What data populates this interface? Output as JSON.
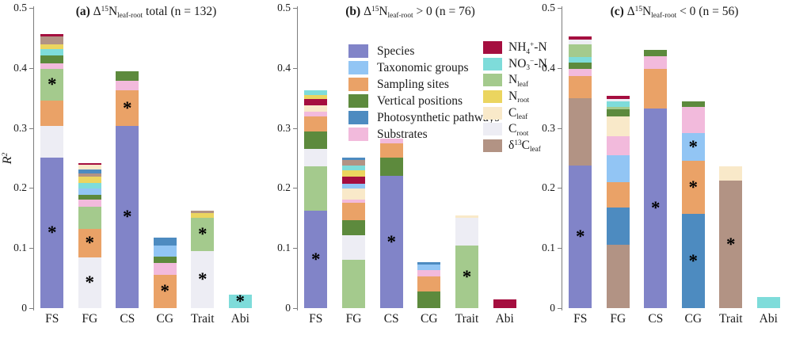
{
  "sig_note": "asterisks mark significant fractions",
  "legend": {
    "factors": [
      {
        "key": "species",
        "color": "#8184C8",
        "label_parts": [
          {
            "t": "Species"
          }
        ]
      },
      {
        "key": "taxonomic",
        "color": "#92C5F4",
        "label_parts": [
          {
            "t": "Taxonomic groups"
          }
        ]
      },
      {
        "key": "sampling",
        "color": "#EAA267",
        "label_parts": [
          {
            "t": "Sampling sites"
          }
        ]
      },
      {
        "key": "vertical",
        "color": "#5D8A3D",
        "label_parts": [
          {
            "t": "Vertical positions"
          }
        ]
      },
      {
        "key": "photosynthetic",
        "color": "#4D8BC0",
        "label_parts": [
          {
            "t": "Photosynthetic pathways"
          }
        ]
      },
      {
        "key": "substrates",
        "color": "#F2BADC",
        "label_parts": [
          {
            "t": "Substrates"
          }
        ]
      }
    ],
    "covariates": [
      {
        "key": "nh4",
        "color": "#A50E3F",
        "label_parts": [
          {
            "t": "NH"
          },
          {
            "sub": "4"
          },
          {
            "sup": "+"
          },
          {
            "t": "-N"
          }
        ]
      },
      {
        "key": "no3",
        "color": "#7EDCDA",
        "label_parts": [
          {
            "t": "NO"
          },
          {
            "sub": "3"
          },
          {
            "sup": "−"
          },
          {
            "t": "-N"
          }
        ]
      },
      {
        "key": "nleaf",
        "color": "#A4CA8D",
        "label_parts": [
          {
            "t": "N"
          },
          {
            "sub": "leaf"
          }
        ]
      },
      {
        "key": "nroot",
        "color": "#EBD55F",
        "label_parts": [
          {
            "t": "N"
          },
          {
            "sub": "root"
          }
        ]
      },
      {
        "key": "cleaf",
        "color": "#F9E9C9",
        "label_parts": [
          {
            "t": "C"
          },
          {
            "sub": "leaf"
          }
        ]
      },
      {
        "key": "croot",
        "color": "#EDEDF4",
        "label_parts": [
          {
            "t": "C"
          },
          {
            "sub": "root"
          }
        ]
      },
      {
        "key": "d13c",
        "color": "#B29384",
        "label_parts": [
          {
            "t": "δ"
          },
          {
            "sup": "13"
          },
          {
            "t": "C"
          },
          {
            "sub": "leaf"
          }
        ]
      }
    ]
  },
  "chart_data": {
    "type": "bar",
    "subtype": "stacked-bar",
    "sig_marker": "*",
    "panels": [
      {
        "id": "a",
        "title_parts": [
          {
            "b": "(a) "
          },
          {
            "t": "Δ"
          },
          {
            "sup": "15"
          },
          {
            "t": "N"
          },
          {
            "sub": "leaf-root"
          },
          {
            "t": " total (n = 132)"
          }
        ],
        "ylabel_parts": [
          {
            "i": "R"
          },
          {
            "sup": "2"
          }
        ],
        "ylim": [
          0,
          0.5
        ],
        "yticks": [
          0,
          0.1,
          0.2,
          0.3,
          0.4,
          0.5
        ],
        "ytick_labels": [
          "0",
          "0.1",
          "0.2",
          "0.3",
          "0.4",
          "0.5"
        ],
        "categories": [
          "FS",
          "FG",
          "CS",
          "CG",
          "Trait",
          "Abi"
        ],
        "bars": [
          {
            "category": "FS",
            "segments": [
              {
                "key": "species",
                "value": 0.251,
                "sig": true
              },
              {
                "key": "croot",
                "value": 0.053
              },
              {
                "key": "sampling",
                "value": 0.042
              },
              {
                "key": "nleaf",
                "value": 0.053,
                "sig": true
              },
              {
                "key": "substrates",
                "value": 0.008
              },
              {
                "key": "vertical",
                "value": 0.014
              },
              {
                "key": "no3",
                "value": 0.011
              },
              {
                "key": "nroot",
                "value": 0.007
              },
              {
                "key": "d13c",
                "value": 0.013
              },
              {
                "key": "nh4",
                "value": 0.005
              }
            ]
          },
          {
            "category": "FG",
            "segments": [
              {
                "key": "croot",
                "value": 0.085,
                "sig": true
              },
              {
                "key": "sampling",
                "value": 0.047,
                "sig": true
              },
              {
                "key": "nleaf",
                "value": 0.037
              },
              {
                "key": "substrates",
                "value": 0.012
              },
              {
                "key": "vertical",
                "value": 0.008
              },
              {
                "key": "taxonomic",
                "value": 0.01
              },
              {
                "key": "no3",
                "value": 0.009
              },
              {
                "key": "nroot",
                "value": 0.011
              },
              {
                "key": "d13c",
                "value": 0.005
              },
              {
                "key": "photosynthetic",
                "value": 0.007
              },
              {
                "key": "cleaf",
                "value": 0.008
              },
              {
                "key": "nh4",
                "value": 0.002
              }
            ]
          },
          {
            "category": "CS",
            "segments": [
              {
                "key": "species",
                "value": 0.303,
                "sig": true
              },
              {
                "key": "sampling",
                "value": 0.06,
                "sig": true
              },
              {
                "key": "substrates",
                "value": 0.016
              },
              {
                "key": "vertical",
                "value": 0.015
              }
            ]
          },
          {
            "category": "CG",
            "segments": [
              {
                "key": "sampling",
                "value": 0.056,
                "sig": true
              },
              {
                "key": "substrates",
                "value": 0.019
              },
              {
                "key": "vertical",
                "value": 0.011
              },
              {
                "key": "taxonomic",
                "value": 0.019
              },
              {
                "key": "photosynthetic",
                "value": 0.013
              }
            ]
          },
          {
            "category": "Trait",
            "segments": [
              {
                "key": "croot",
                "value": 0.095,
                "sig": true
              },
              {
                "key": "nleaf",
                "value": 0.056,
                "sig": true
              },
              {
                "key": "nroot",
                "value": 0.008
              },
              {
                "key": "d13c",
                "value": 0.004
              }
            ]
          },
          {
            "category": "Abi",
            "segments": [
              {
                "key": "no3",
                "value": 0.022,
                "sig": true
              }
            ]
          }
        ]
      },
      {
        "id": "b",
        "title_parts": [
          {
            "b": "(b) "
          },
          {
            "t": "Δ"
          },
          {
            "sup": "15"
          },
          {
            "t": "N"
          },
          {
            "sub": "leaf-root"
          },
          {
            "t": " > 0 (n = 76)"
          }
        ],
        "ylim": [
          0,
          0.5
        ],
        "yticks": [
          0,
          0.1,
          0.2,
          0.3,
          0.4,
          0.5
        ],
        "ytick_labels": [
          "0",
          "0.1",
          "0.2",
          "0.3",
          "0.4",
          "0.5"
        ],
        "categories": [
          "FS",
          "FG",
          "CS",
          "CG",
          "Trait",
          "Abi"
        ],
        "bars": [
          {
            "category": "FS",
            "segments": [
              {
                "key": "species",
                "value": 0.162,
                "sig": true
              },
              {
                "key": "nleaf",
                "value": 0.074
              },
              {
                "key": "croot",
                "value": 0.029
              },
              {
                "key": "vertical",
                "value": 0.029
              },
              {
                "key": "sampling",
                "value": 0.025
              },
              {
                "key": "substrates",
                "value": 0.008
              },
              {
                "key": "cleaf",
                "value": 0.011
              },
              {
                "key": "nh4",
                "value": 0.01
              },
              {
                "key": "nroot",
                "value": 0.007
              },
              {
                "key": "no3",
                "value": 0.008
              }
            ]
          },
          {
            "category": "FG",
            "segments": [
              {
                "key": "nleaf",
                "value": 0.08
              },
              {
                "key": "croot",
                "value": 0.042
              },
              {
                "key": "vertical",
                "value": 0.024
              },
              {
                "key": "sampling",
                "value": 0.029
              },
              {
                "key": "substrates",
                "value": 0.006
              },
              {
                "key": "cleaf",
                "value": 0.018
              },
              {
                "key": "taxonomic",
                "value": 0.008
              },
              {
                "key": "nh4",
                "value": 0.012
              },
              {
                "key": "nroot",
                "value": 0.011
              },
              {
                "key": "no3",
                "value": 0.008
              },
              {
                "key": "d13c",
                "value": 0.009
              },
              {
                "key": "photosynthetic",
                "value": 0.004
              }
            ]
          },
          {
            "category": "CS",
            "segments": [
              {
                "key": "species",
                "value": 0.22,
                "sig": true
              },
              {
                "key": "vertical",
                "value": 0.031
              },
              {
                "key": "sampling",
                "value": 0.024
              },
              {
                "key": "substrates",
                "value": 0.007
              }
            ]
          },
          {
            "category": "CG",
            "segments": [
              {
                "key": "vertical",
                "value": 0.028
              },
              {
                "key": "sampling",
                "value": 0.025
              },
              {
                "key": "substrates",
                "value": 0.011
              },
              {
                "key": "taxonomic",
                "value": 0.009
              },
              {
                "key": "photosynthetic",
                "value": 0.004
              }
            ]
          },
          {
            "category": "Trait",
            "segments": [
              {
                "key": "nleaf",
                "value": 0.104,
                "sig": true
              },
              {
                "key": "croot",
                "value": 0.047
              },
              {
                "key": "cleaf",
                "value": 0.004
              }
            ]
          },
          {
            "category": "Abi",
            "segments": [
              {
                "key": "nh4",
                "value": 0.014
              }
            ]
          }
        ]
      },
      {
        "id": "c",
        "title_parts": [
          {
            "b": "(c) "
          },
          {
            "t": "Δ"
          },
          {
            "sup": "15"
          },
          {
            "t": "N"
          },
          {
            "sub": "leaf-root"
          },
          {
            "t": " < 0 (n = 56)"
          }
        ],
        "ylim": [
          0,
          0.5
        ],
        "yticks": [
          0,
          0.1,
          0.2,
          0.3,
          0.4,
          0.5
        ],
        "ytick_labels": [
          "0",
          "0.1",
          "0.2",
          "0.3",
          "0.4",
          "0.5"
        ],
        "categories": [
          "FS",
          "FG",
          "CS",
          "CG",
          "Trait",
          "Abi"
        ],
        "bars": [
          {
            "category": "FS",
            "segments": [
              {
                "key": "species",
                "value": 0.238,
                "sig": true
              },
              {
                "key": "d13c",
                "value": 0.112
              },
              {
                "key": "sampling",
                "value": 0.037
              },
              {
                "key": "substrates",
                "value": 0.011
              },
              {
                "key": "vertical",
                "value": 0.011
              },
              {
                "key": "no3",
                "value": 0.01
              },
              {
                "key": "nleaf",
                "value": 0.02
              },
              {
                "key": "croot",
                "value": 0.008
              },
              {
                "key": "nh4",
                "value": 0.005
              }
            ]
          },
          {
            "category": "FG",
            "segments": [
              {
                "key": "d13c",
                "value": 0.106
              },
              {
                "key": "photosynthetic",
                "value": 0.062
              },
              {
                "key": "sampling",
                "value": 0.042
              },
              {
                "key": "taxonomic",
                "value": 0.045
              },
              {
                "key": "substrates",
                "value": 0.032
              },
              {
                "key": "cleaf",
                "value": 0.033
              },
              {
                "key": "vertical",
                "value": 0.011
              },
              {
                "key": "nleaf",
                "value": 0.004
              },
              {
                "key": "no3",
                "value": 0.009
              },
              {
                "key": "croot",
                "value": 0.005
              },
              {
                "key": "nh4",
                "value": 0.005
              }
            ]
          },
          {
            "category": "CS",
            "segments": [
              {
                "key": "species",
                "value": 0.333,
                "sig": true
              },
              {
                "key": "sampling",
                "value": 0.065
              },
              {
                "key": "substrates",
                "value": 0.022
              },
              {
                "key": "vertical",
                "value": 0.01
              }
            ]
          },
          {
            "category": "CG",
            "segments": [
              {
                "key": "photosynthetic",
                "value": 0.157,
                "sig": true
              },
              {
                "key": "sampling",
                "value": 0.088,
                "sig": true
              },
              {
                "key": "taxonomic",
                "value": 0.047,
                "sig": true
              },
              {
                "key": "substrates",
                "value": 0.043
              },
              {
                "key": "vertical",
                "value": 0.01
              }
            ]
          },
          {
            "category": "Trait",
            "segments": [
              {
                "key": "d13c",
                "value": 0.212,
                "sig": true
              },
              {
                "key": "cleaf",
                "value": 0.024
              }
            ]
          },
          {
            "category": "Abi",
            "segments": [
              {
                "key": "no3",
                "value": 0.018
              }
            ]
          }
        ]
      }
    ]
  }
}
